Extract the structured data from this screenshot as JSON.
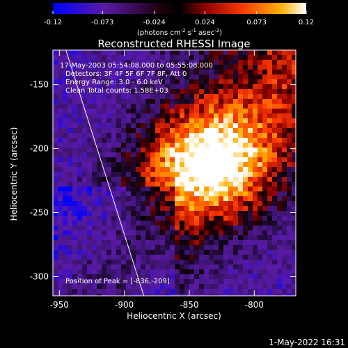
{
  "colorbar": {
    "ticks": [
      "-0.12",
      "-0.073",
      "-0.024",
      "0.024",
      "0.073",
      "0.12"
    ],
    "tick_values": [
      -0.12,
      -0.073,
      -0.024,
      0.024,
      0.073,
      0.12
    ],
    "unit_main": "(photons cm",
    "unit_sup1": "-2",
    "unit_s": " s",
    "unit_sup2": "-1",
    "unit_asec": " asec",
    "unit_sup3": "-2",
    "unit_close": ")"
  },
  "chart_data": {
    "type": "heatmap",
    "title": "Reconstructed RHESSI Image",
    "xlabel": "Heliocentric X (arcsec)",
    "ylabel": "Heliocentric Y (arcsec)",
    "xlim": [
      -955,
      -768
    ],
    "ylim": [
      -315,
      -123
    ],
    "x_ticks": [
      "-950",
      "-900",
      "-850",
      "-800"
    ],
    "x_tick_values": [
      -950,
      -900,
      -850,
      -800
    ],
    "y_ticks": [
      "-150",
      "-200",
      "-250",
      "-300"
    ],
    "y_tick_values": [
      -150,
      -200,
      -250,
      -300
    ],
    "value_range": [
      -0.12,
      0.12
    ],
    "colormap": [
      "#0000ff",
      "#5a1aa8",
      "#000000",
      "#8a0000",
      "#ff3a00",
      "#ffb000",
      "#ffffff"
    ],
    "peak": [
      -836,
      -209
    ],
    "limb_line": [
      [
        -945,
        -123
      ],
      [
        -885,
        -315
      ]
    ],
    "annotations": {
      "time": "17-May-2003 05:54:08.000 to 05:55:08.000",
      "detectors": "Detectors: 3F 4F 5F 6F 7F 8F, Att 0",
      "energy": "Energy Range: 3.0 - 6.0 keV",
      "clean": "Clean     Total counts: 1.58E+03",
      "peak_text": "Position of Peak = [-836,-209]"
    }
  },
  "footer": {
    "date": "1-May-2022 16:31"
  }
}
